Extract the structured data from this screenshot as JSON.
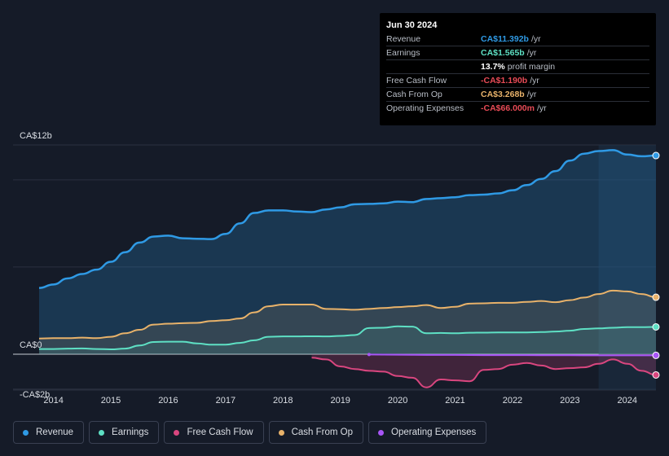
{
  "tooltip": {
    "date": "Jun 30 2024",
    "rows": [
      {
        "label": "Revenue",
        "value": "CA$11.392b",
        "unit": "/yr",
        "color": "#2f9ae5"
      },
      {
        "label": "Earnings",
        "value": "CA$1.565b",
        "unit": "/yr",
        "color": "#5ee0c4"
      },
      {
        "label": "",
        "value": "13.7%",
        "unit": "profit margin",
        "color": "#ffffff"
      },
      {
        "label": "Free Cash Flow",
        "value": "-CA$1.190b",
        "unit": "/yr",
        "color": "#e84b56"
      },
      {
        "label": "Cash From Op",
        "value": "CA$3.268b",
        "unit": "/yr",
        "color": "#e8b26a"
      },
      {
        "label": "Operating Expenses",
        "value": "-CA$66.000m",
        "unit": "/yr",
        "color": "#e84b56"
      }
    ]
  },
  "legend": [
    {
      "label": "Revenue",
      "color": "#2f9ae5"
    },
    {
      "label": "Earnings",
      "color": "#5ee0c4"
    },
    {
      "label": "Free Cash Flow",
      "color": "#d9467f"
    },
    {
      "label": "Cash From Op",
      "color": "#e8b26a"
    },
    {
      "label": "Operating Expenses",
      "color": "#a855f7"
    }
  ],
  "chart_data": {
    "type": "area",
    "title": "",
    "xlabel": "",
    "ylabel": "",
    "y_tick_labels": [
      {
        "value": 12,
        "label": "CA$12b"
      },
      {
        "value": 0,
        "label": "CA$0"
      },
      {
        "value": -2,
        "label": "-CA$2b"
      }
    ],
    "ylim": [
      -2,
      12
    ],
    "xlim": [
      2013.7,
      2024.5
    ],
    "x_tick_labels": [
      "2014",
      "2015",
      "2016",
      "2017",
      "2018",
      "2019",
      "2020",
      "2021",
      "2022",
      "2023",
      "2024"
    ],
    "x_ticks": [
      2014,
      2015,
      2016,
      2017,
      2018,
      2019,
      2020,
      2021,
      2022,
      2023,
      2024
    ],
    "highlight_start": 2023.5,
    "series": [
      {
        "name": "Revenue",
        "color": "#2f9ae5",
        "fill": true,
        "points": [
          [
            2013.75,
            3.8
          ],
          [
            2014.0,
            4.0
          ],
          [
            2014.25,
            4.35
          ],
          [
            2014.5,
            4.6
          ],
          [
            2014.75,
            4.85
          ],
          [
            2015.0,
            5.3
          ],
          [
            2015.25,
            5.85
          ],
          [
            2015.5,
            6.4
          ],
          [
            2015.75,
            6.75
          ],
          [
            2016.0,
            6.8
          ],
          [
            2016.25,
            6.65
          ],
          [
            2016.5,
            6.62
          ],
          [
            2016.75,
            6.6
          ],
          [
            2017.0,
            6.9
          ],
          [
            2017.25,
            7.5
          ],
          [
            2017.5,
            8.1
          ],
          [
            2017.75,
            8.25
          ],
          [
            2018.0,
            8.25
          ],
          [
            2018.25,
            8.18
          ],
          [
            2018.5,
            8.15
          ],
          [
            2018.75,
            8.3
          ],
          [
            2019.0,
            8.42
          ],
          [
            2019.25,
            8.6
          ],
          [
            2019.5,
            8.62
          ],
          [
            2019.75,
            8.65
          ],
          [
            2020.0,
            8.75
          ],
          [
            2020.25,
            8.72
          ],
          [
            2020.5,
            8.9
          ],
          [
            2020.75,
            8.95
          ],
          [
            2021.0,
            9.0
          ],
          [
            2021.25,
            9.12
          ],
          [
            2021.5,
            9.15
          ],
          [
            2021.75,
            9.22
          ],
          [
            2022.0,
            9.4
          ],
          [
            2022.25,
            9.7
          ],
          [
            2022.5,
            10.05
          ],
          [
            2022.75,
            10.5
          ],
          [
            2023.0,
            11.1
          ],
          [
            2023.25,
            11.5
          ],
          [
            2023.5,
            11.65
          ],
          [
            2023.75,
            11.7
          ],
          [
            2024.0,
            11.45
          ],
          [
            2024.25,
            11.35
          ],
          [
            2024.5,
            11.392
          ]
        ]
      },
      {
        "name": "Cash From Op",
        "color": "#e8b26a",
        "fill": true,
        "points": [
          [
            2013.75,
            0.9
          ],
          [
            2014.0,
            0.92
          ],
          [
            2014.25,
            0.92
          ],
          [
            2014.5,
            0.95
          ],
          [
            2014.75,
            0.92
          ],
          [
            2015.0,
            1.0
          ],
          [
            2015.25,
            1.2
          ],
          [
            2015.5,
            1.4
          ],
          [
            2015.75,
            1.7
          ],
          [
            2016.0,
            1.75
          ],
          [
            2016.25,
            1.78
          ],
          [
            2016.5,
            1.8
          ],
          [
            2016.75,
            1.9
          ],
          [
            2017.0,
            1.95
          ],
          [
            2017.25,
            2.05
          ],
          [
            2017.5,
            2.4
          ],
          [
            2017.75,
            2.75
          ],
          [
            2018.0,
            2.85
          ],
          [
            2018.25,
            2.85
          ],
          [
            2018.5,
            2.85
          ],
          [
            2018.75,
            2.6
          ],
          [
            2019.0,
            2.58
          ],
          [
            2019.25,
            2.55
          ],
          [
            2019.5,
            2.6
          ],
          [
            2019.75,
            2.65
          ],
          [
            2020.0,
            2.7
          ],
          [
            2020.25,
            2.75
          ],
          [
            2020.5,
            2.82
          ],
          [
            2020.75,
            2.65
          ],
          [
            2021.0,
            2.72
          ],
          [
            2021.25,
            2.9
          ],
          [
            2021.5,
            2.92
          ],
          [
            2021.75,
            2.95
          ],
          [
            2022.0,
            2.95
          ],
          [
            2022.25,
            3.0
          ],
          [
            2022.5,
            3.05
          ],
          [
            2022.75,
            2.98
          ],
          [
            2023.0,
            3.1
          ],
          [
            2023.25,
            3.25
          ],
          [
            2023.5,
            3.45
          ],
          [
            2023.75,
            3.65
          ],
          [
            2024.0,
            3.6
          ],
          [
            2024.25,
            3.45
          ],
          [
            2024.5,
            3.268
          ]
        ]
      },
      {
        "name": "Earnings",
        "color": "#5ee0c4",
        "fill": true,
        "points": [
          [
            2013.75,
            0.3
          ],
          [
            2014.0,
            0.3
          ],
          [
            2014.25,
            0.32
          ],
          [
            2014.5,
            0.33
          ],
          [
            2014.75,
            0.3
          ],
          [
            2015.0,
            0.28
          ],
          [
            2015.25,
            0.32
          ],
          [
            2015.5,
            0.5
          ],
          [
            2015.75,
            0.7
          ],
          [
            2016.0,
            0.72
          ],
          [
            2016.25,
            0.72
          ],
          [
            2016.5,
            0.62
          ],
          [
            2016.75,
            0.55
          ],
          [
            2017.0,
            0.55
          ],
          [
            2017.25,
            0.65
          ],
          [
            2017.5,
            0.8
          ],
          [
            2017.75,
            1.0
          ],
          [
            2018.0,
            1.02
          ],
          [
            2018.25,
            1.02
          ],
          [
            2018.5,
            1.03
          ],
          [
            2018.75,
            1.02
          ],
          [
            2019.0,
            1.05
          ],
          [
            2019.25,
            1.1
          ],
          [
            2019.5,
            1.5
          ],
          [
            2019.75,
            1.52
          ],
          [
            2020.0,
            1.6
          ],
          [
            2020.25,
            1.58
          ],
          [
            2020.5,
            1.2
          ],
          [
            2020.75,
            1.22
          ],
          [
            2021.0,
            1.2
          ],
          [
            2021.25,
            1.23
          ],
          [
            2021.5,
            1.24
          ],
          [
            2021.75,
            1.25
          ],
          [
            2022.0,
            1.25
          ],
          [
            2022.25,
            1.25
          ],
          [
            2022.5,
            1.27
          ],
          [
            2022.75,
            1.3
          ],
          [
            2023.0,
            1.35
          ],
          [
            2023.25,
            1.45
          ],
          [
            2023.5,
            1.48
          ],
          [
            2023.75,
            1.52
          ],
          [
            2024.0,
            1.55
          ],
          [
            2024.25,
            1.55
          ],
          [
            2024.5,
            1.565
          ]
        ]
      },
      {
        "name": "Free Cash Flow",
        "color": "#d9467f",
        "fill": true,
        "points": [
          [
            2018.5,
            -0.2
          ],
          [
            2018.75,
            -0.3
          ],
          [
            2019.0,
            -0.7
          ],
          [
            2019.25,
            -0.85
          ],
          [
            2019.5,
            -0.95
          ],
          [
            2019.75,
            -1.0
          ],
          [
            2020.0,
            -1.25
          ],
          [
            2020.25,
            -1.35
          ],
          [
            2020.5,
            -1.9
          ],
          [
            2020.75,
            -1.45
          ],
          [
            2021.0,
            -1.5
          ],
          [
            2021.25,
            -1.55
          ],
          [
            2021.5,
            -0.9
          ],
          [
            2021.75,
            -0.85
          ],
          [
            2022.0,
            -0.6
          ],
          [
            2022.25,
            -0.5
          ],
          [
            2022.5,
            -0.65
          ],
          [
            2022.75,
            -0.85
          ],
          [
            2023.0,
            -0.8
          ],
          [
            2023.25,
            -0.75
          ],
          [
            2023.5,
            -0.55
          ],
          [
            2023.75,
            -0.3
          ],
          [
            2024.0,
            -0.55
          ],
          [
            2024.25,
            -0.95
          ],
          [
            2024.5,
            -1.19
          ]
        ]
      },
      {
        "name": "Operating Expenses",
        "color": "#a855f7",
        "fill": false,
        "points": [
          [
            2019.5,
            -0.02
          ],
          [
            2020.0,
            -0.03
          ],
          [
            2020.5,
            -0.04
          ],
          [
            2021.0,
            -0.04
          ],
          [
            2021.5,
            -0.05
          ],
          [
            2022.0,
            -0.05
          ],
          [
            2022.5,
            -0.06
          ],
          [
            2023.0,
            -0.06
          ],
          [
            2023.5,
            -0.065
          ],
          [
            2024.0,
            -0.066
          ],
          [
            2024.5,
            -0.066
          ]
        ]
      }
    ]
  }
}
